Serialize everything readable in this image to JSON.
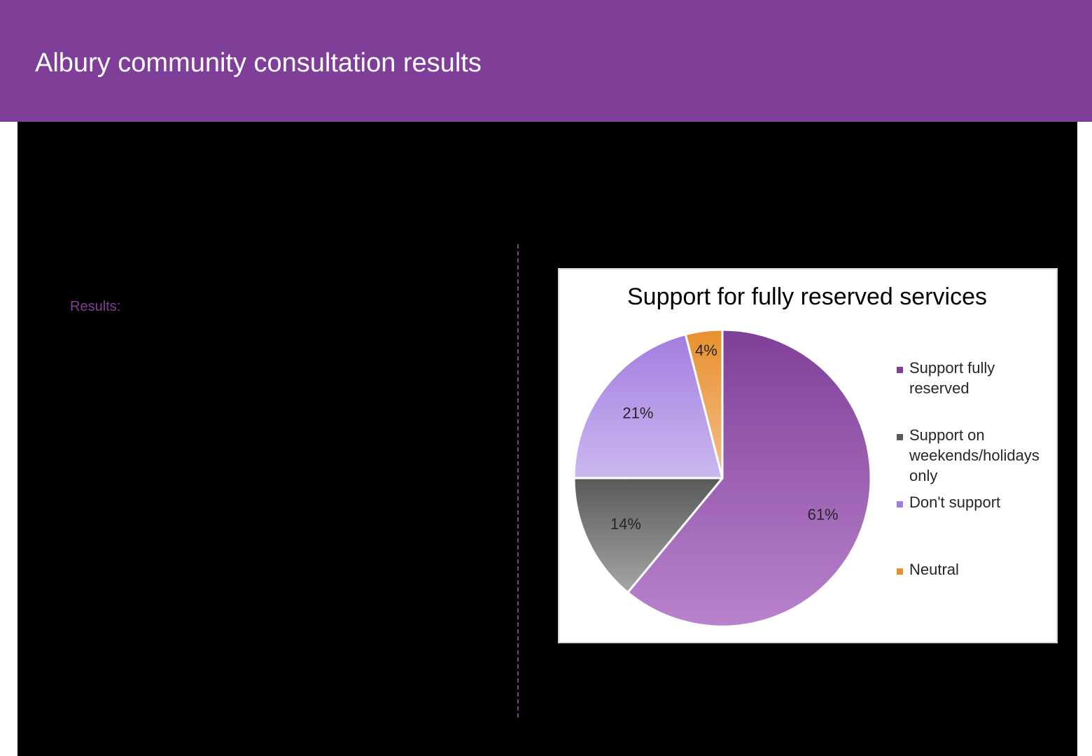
{
  "header": {
    "title": "Albury community consultation results",
    "background_color": "#7f3f98"
  },
  "main": {
    "results_label": "Results:",
    "accent_color": "#7f3f98"
  },
  "chart_data": {
    "type": "pie",
    "title": "Support for fully reserved services",
    "categories": [
      "Support fully reserved",
      "Support on weekends/holidays only",
      "Don't support",
      "Neutral"
    ],
    "values": [
      61,
      14,
      21,
      4
    ],
    "labels": [
      "61%",
      "14%",
      "21%",
      "4%"
    ],
    "colors": [
      {
        "top": "#7f3f98",
        "bottom": "#b983cc"
      },
      {
        "top": "#595959",
        "bottom": "#a6a6a6"
      },
      {
        "top": "#a27de0",
        "bottom": "#cbb8ef"
      },
      {
        "top": "#e8902e",
        "bottom": "#f2be8a"
      }
    ],
    "legend_colors": [
      "#7f3f98",
      "#595959",
      "#a27de0",
      "#e8902e"
    ],
    "legend_lines": [
      [
        "Support fully",
        "reserved"
      ],
      [
        "Support on",
        "weekends/holidays",
        "only"
      ],
      [
        "Don't support"
      ],
      [
        "Neutral"
      ]
    ],
    "legend_position": "right",
    "start_angle_deg": 0,
    "direction": "clockwise"
  }
}
